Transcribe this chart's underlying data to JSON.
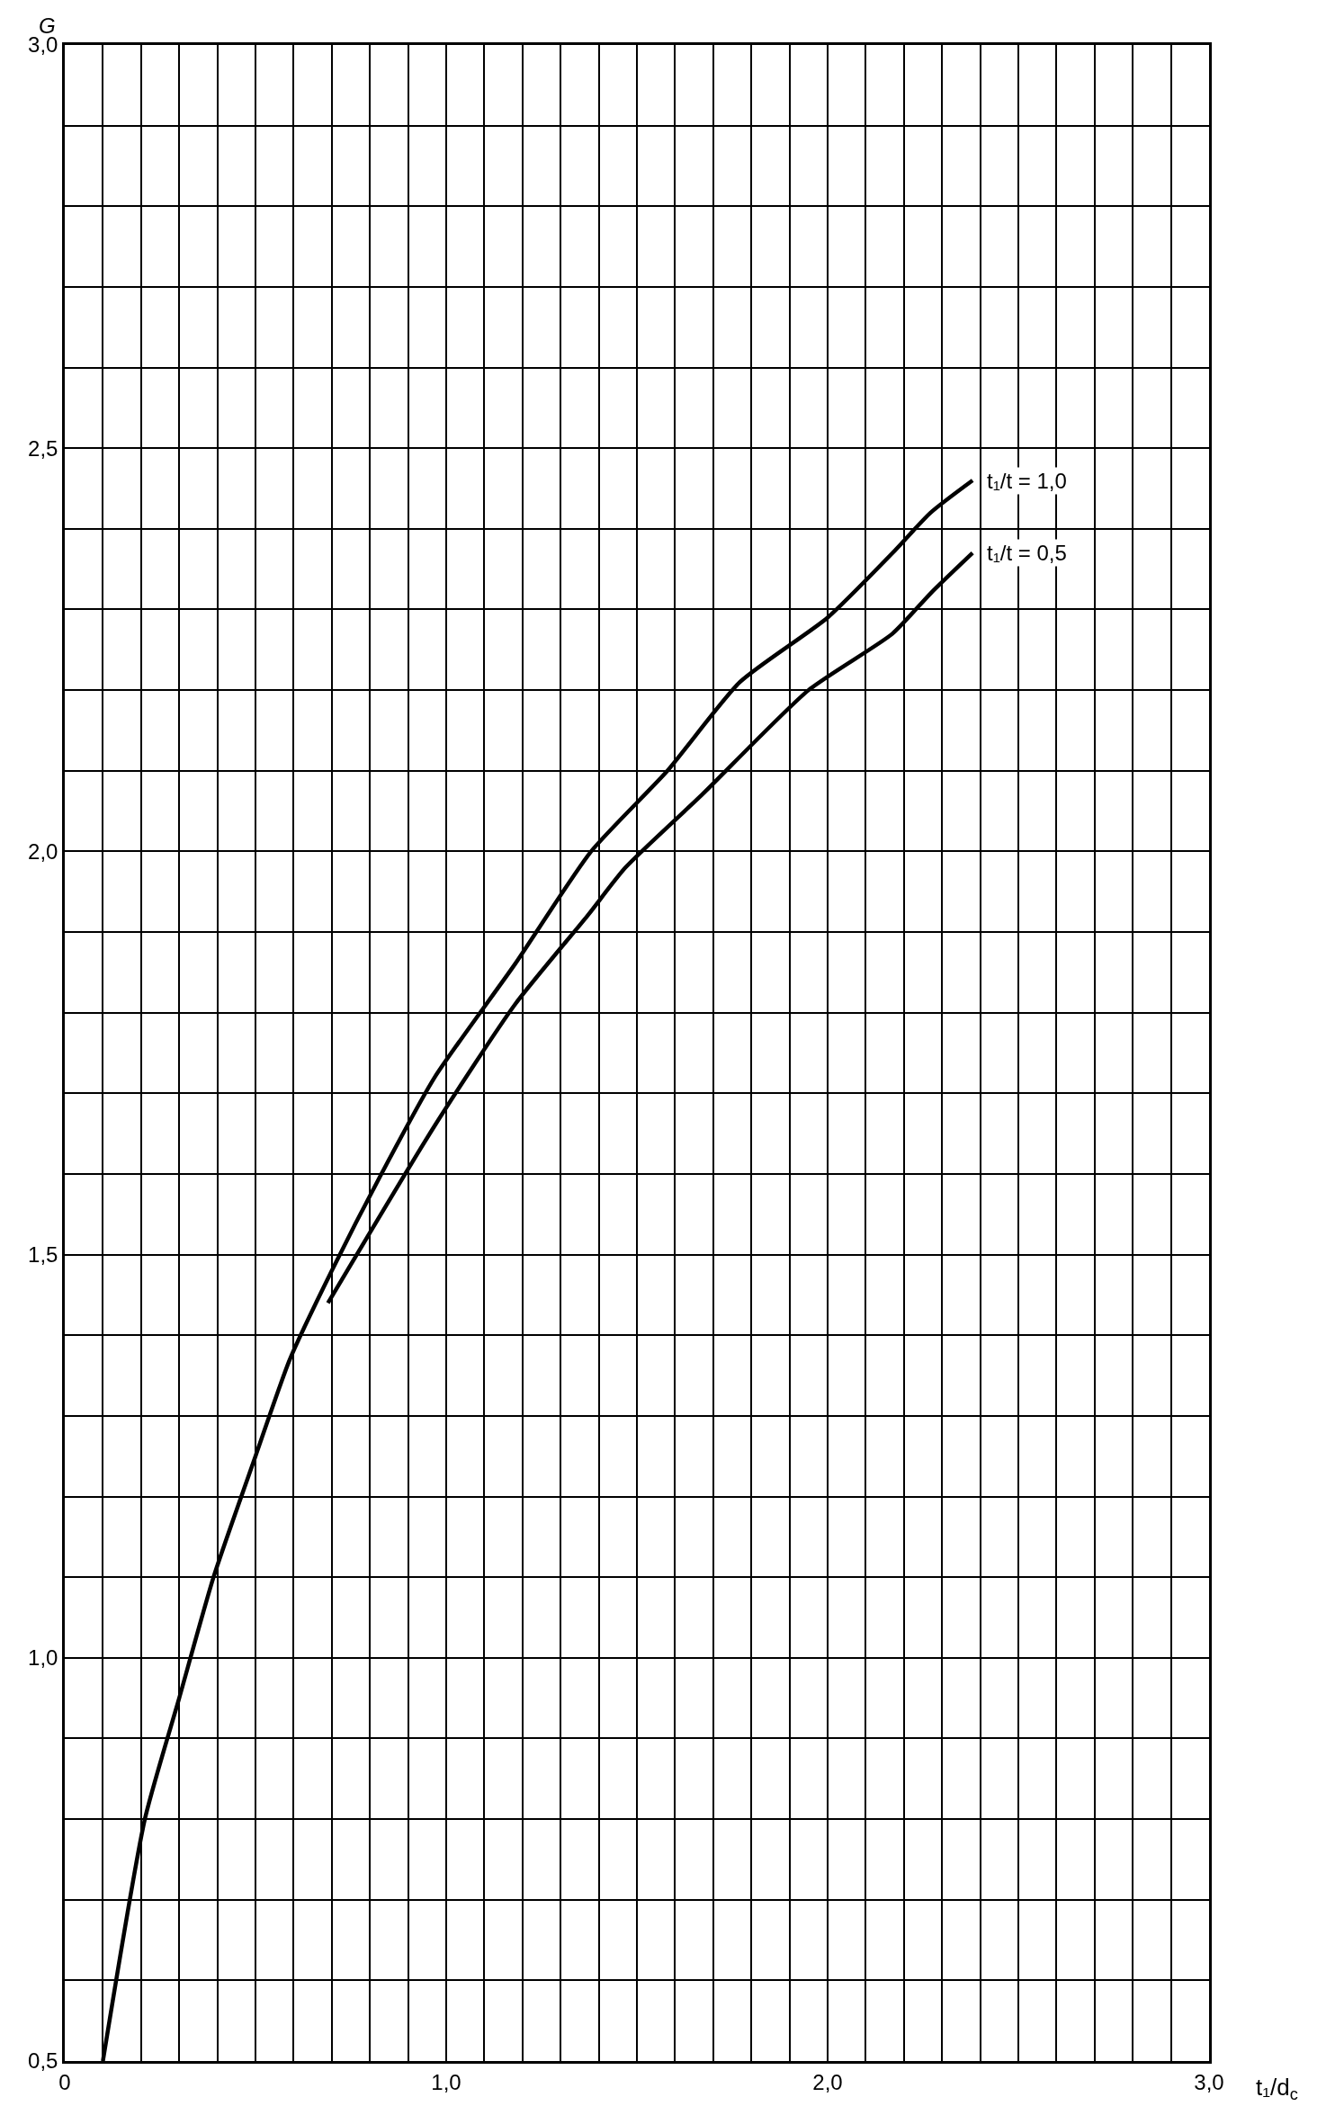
{
  "chart_data": {
    "type": "line",
    "xlabel": "t₁/d$_{c}$",
    "ylabel": "G",
    "series": [
      {
        "name": "t₁/t = 1,0",
        "color": "#000000",
        "x": [
          0.1,
          0.21,
          0.3,
          0.39,
          0.5,
          0.59,
          0.7,
          0.83,
          0.97,
          1.18,
          1.38,
          1.58,
          1.77,
          2.0,
          2.17,
          2.27,
          2.38
        ],
        "values": [
          0.5,
          0.8,
          0.95,
          1.1,
          1.25,
          1.37,
          1.48,
          1.6,
          1.72,
          1.86,
          2.0,
          2.1,
          2.21,
          2.29,
          2.37,
          2.42,
          2.46
        ]
      },
      {
        "name": "t₁/t = 0,5",
        "color": "#000000",
        "x": [
          0.69,
          0.97,
          1.18,
          1.37,
          1.47,
          1.67,
          1.95,
          2.17,
          2.27,
          2.38
        ],
        "values": [
          1.44,
          1.66,
          1.81,
          1.92,
          1.98,
          2.07,
          2.2,
          2.27,
          2.32,
          2.37
        ]
      }
    ],
    "xlim": [
      0,
      3.0
    ],
    "ylim": [
      0.5,
      3.0
    ],
    "xticks": [
      {
        "value": 0,
        "label": "0"
      },
      {
        "value": 0.1,
        "label": null
      },
      {
        "value": 0.2,
        "label": null
      },
      {
        "value": 0.3,
        "label": null
      },
      {
        "value": 0.4,
        "label": null
      },
      {
        "value": 0.5,
        "label": null
      },
      {
        "value": 0.6,
        "label": null
      },
      {
        "value": 0.7,
        "label": null
      },
      {
        "value": 0.8,
        "label": null
      },
      {
        "value": 0.9,
        "label": null
      },
      {
        "value": 1.0,
        "label": "1,0"
      },
      {
        "value": 1.1,
        "label": null
      },
      {
        "value": 1.2,
        "label": null
      },
      {
        "value": 1.3,
        "label": null
      },
      {
        "value": 1.4,
        "label": null
      },
      {
        "value": 1.5,
        "label": null
      },
      {
        "value": 1.6,
        "label": null
      },
      {
        "value": 1.7,
        "label": null
      },
      {
        "value": 1.8,
        "label": null
      },
      {
        "value": 1.9,
        "label": null
      },
      {
        "value": 2.0,
        "label": "2,0"
      },
      {
        "value": 2.1,
        "label": null
      },
      {
        "value": 2.2,
        "label": null
      },
      {
        "value": 2.3,
        "label": null
      },
      {
        "value": 2.4,
        "label": null
      },
      {
        "value": 2.5,
        "label": null
      },
      {
        "value": 2.6,
        "label": null
      },
      {
        "value": 2.7,
        "label": null
      },
      {
        "value": 2.8,
        "label": null
      },
      {
        "value": 2.9,
        "label": null
      },
      {
        "value": 3.0,
        "label": "3,0"
      }
    ],
    "yticks": [
      {
        "value": 0.5,
        "label": "0,5"
      },
      {
        "value": 0.6,
        "label": null
      },
      {
        "value": 0.7,
        "label": null
      },
      {
        "value": 0.8,
        "label": null
      },
      {
        "value": 0.9,
        "label": null
      },
      {
        "value": 1.0,
        "label": "1,0"
      },
      {
        "value": 1.1,
        "label": null
      },
      {
        "value": 1.2,
        "label": null
      },
      {
        "value": 1.3,
        "label": null
      },
      {
        "value": 1.4,
        "label": null
      },
      {
        "value": 1.5,
        "label": "1,5"
      },
      {
        "value": 1.6,
        "label": null
      },
      {
        "value": 1.7,
        "label": null
      },
      {
        "value": 1.8,
        "label": null
      },
      {
        "value": 1.9,
        "label": null
      },
      {
        "value": 2.0,
        "label": "2,0"
      },
      {
        "value": 2.1,
        "label": null
      },
      {
        "value": 2.2,
        "label": null
      },
      {
        "value": 2.3,
        "label": null
      },
      {
        "value": 2.4,
        "label": null
      },
      {
        "value": 2.5,
        "label": "2,5"
      },
      {
        "value": 2.6,
        "label": null
      },
      {
        "value": 2.7,
        "label": null
      },
      {
        "value": 2.8,
        "label": null
      },
      {
        "value": 2.9,
        "label": null
      },
      {
        "value": 3.0,
        "label": "3,0"
      }
    ],
    "grid": true,
    "marker": "none",
    "line_style": "solid"
  }
}
